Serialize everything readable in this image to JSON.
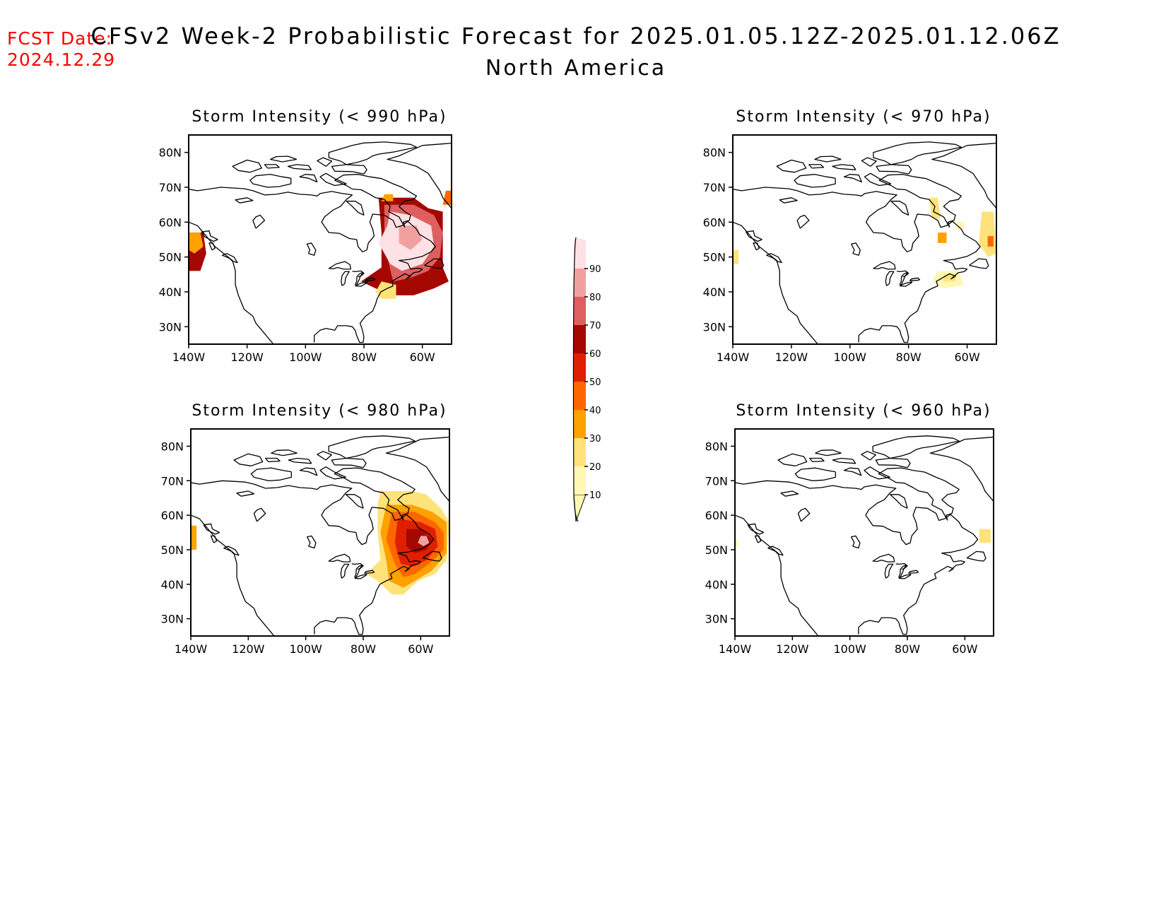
{
  "header": {
    "fcst_label": "FCST Date:",
    "fcst_date": "2024.12.29",
    "title": "CFSv2 Week-2 Probabilistic Forecast for 2025.01.05.12Z-2025.01.12.06Z",
    "subtitle": "North America"
  },
  "axes": {
    "lat_labels": [
      "80N",
      "70N",
      "60N",
      "50N",
      "40N",
      "30N"
    ],
    "lon_labels": [
      "140W",
      "120W",
      "100W",
      "80W",
      "60W"
    ]
  },
  "colorbar": {
    "levels": [
      "10",
      "20",
      "30",
      "40",
      "50",
      "60",
      "70",
      "80",
      "90"
    ],
    "colors": [
      "#fff7b3",
      "#ffe37a",
      "#ffa100",
      "#ff6600",
      "#e01f00",
      "#a50800",
      "#dd5f5f",
      "#f1a0a0",
      "#fde1e4"
    ]
  },
  "map_data": {
    "lat_range": [
      25,
      85
    ],
    "lon_range": [
      -140,
      -50
    ],
    "panels": [
      {
        "id": "p990",
        "title": "Storm Intensity (< 990 hPa)",
        "regions": [
          {
            "level": 6,
            "lonlat": [
              [
                -140,
                57
              ],
              [
                -135,
                57
              ],
              [
                -134,
                51
              ],
              [
                -136,
                46
              ],
              [
                -140,
                46
              ]
            ]
          },
          {
            "level": 3,
            "lonlat": [
              [
                -140,
                57
              ],
              [
                -136,
                57
              ],
              [
                -135,
                53
              ],
              [
                -138,
                51
              ],
              [
                -140,
                52
              ]
            ]
          },
          {
            "level": 6,
            "lonlat": [
              [
                -75,
                67
              ],
              [
                -63,
                67
              ],
              [
                -58,
                64
              ],
              [
                -53,
                63
              ],
              [
                -53,
                47
              ],
              [
                -51,
                43
              ],
              [
                -56,
                41
              ],
              [
                -63,
                39
              ],
              [
                -70,
                39
              ],
              [
                -76,
                41
              ],
              [
                -81,
                43
              ],
              [
                -74,
                47
              ],
              [
                -74,
                57
              ]
            ]
          },
          {
            "level": 7,
            "lonlat": [
              [
                -73,
                65
              ],
              [
                -63,
                65
              ],
              [
                -56,
                62
              ],
              [
                -53,
                57
              ],
              [
                -54,
                50
              ],
              [
                -58,
                46
              ],
              [
                -64,
                44
              ],
              [
                -70,
                43
              ],
              [
                -72,
                50
              ],
              [
                -73,
                58
              ]
            ]
          },
          {
            "level": 9,
            "lonlat": [
              [
                -71,
                63
              ],
              [
                -64,
                62
              ],
              [
                -57,
                59
              ],
              [
                -56,
                53
              ],
              [
                -60,
                48
              ],
              [
                -67,
                46
              ],
              [
                -71,
                48
              ],
              [
                -75,
                54
              ],
              [
                -72,
                59
              ]
            ]
          },
          {
            "level": 8,
            "lonlat": [
              [
                -68,
                59
              ],
              [
                -62,
                59
              ],
              [
                -60,
                55
              ],
              [
                -64,
                52
              ],
              [
                -68,
                54
              ]
            ]
          },
          {
            "level": 2,
            "lonlat": [
              [
                -74,
                43
              ],
              [
                -69,
                42
              ],
              [
                -69,
                38
              ],
              [
                -74,
                38
              ],
              [
                -76,
                40
              ]
            ]
          },
          {
            "level": 3,
            "lonlat": [
              [
                -73,
                68
              ],
              [
                -70,
                68
              ],
              [
                -70,
                66
              ],
              [
                -74,
                66
              ]
            ]
          },
          {
            "level": 4,
            "lonlat": [
              [
                -52,
                69
              ],
              [
                -50,
                69
              ],
              [
                -50,
                65
              ],
              [
                -53,
                65
              ]
            ]
          }
        ]
      },
      {
        "id": "p970",
        "title": "Storm Intensity (< 970 hPa)",
        "regions": [
          {
            "level": 2,
            "lonlat": [
              [
                -140,
                52
              ],
              [
                -138,
                52
              ],
              [
                -138,
                48
              ],
              [
                -140,
                48
              ]
            ]
          },
          {
            "level": 2,
            "lonlat": [
              [
                -73,
                67
              ],
              [
                -70,
                67
              ],
              [
                -69,
                61
              ],
              [
                -72,
                61
              ]
            ]
          },
          {
            "level": 3,
            "lonlat": [
              [
                -70,
                57
              ],
              [
                -67,
                57
              ],
              [
                -67,
                54
              ],
              [
                -70,
                54
              ]
            ]
          },
          {
            "level": 2,
            "lonlat": [
              [
                -55,
                63
              ],
              [
                -51,
                63
              ],
              [
                -50,
                51
              ],
              [
                -53,
                50
              ],
              [
                -56,
                54
              ]
            ]
          },
          {
            "level": 4,
            "lonlat": [
              [
                -53,
                56
              ],
              [
                -51,
                56
              ],
              [
                -51,
                53
              ],
              [
                -53,
                53
              ]
            ]
          },
          {
            "level": 1,
            "lonlat": [
              [
                -70,
                46
              ],
              [
                -63,
                46
              ],
              [
                -61,
                42
              ],
              [
                -68,
                41
              ],
              [
                -72,
                43
              ]
            ]
          },
          {
            "level": 2,
            "lonlat": [
              [
                -68,
                45
              ],
              [
                -64,
                45
              ],
              [
                -64,
                43
              ],
              [
                -68,
                43
              ]
            ]
          },
          {
            "level": 1,
            "lonlat": [
              [
                -64,
                60
              ],
              [
                -61,
                60
              ],
              [
                -61,
                58
              ],
              [
                -64,
                58
              ]
            ]
          }
        ]
      },
      {
        "id": "p980",
        "title": "Storm Intensity (< 980 hPa)",
        "regions": [
          {
            "level": 3,
            "lonlat": [
              [
                -140,
                57
              ],
              [
                -138,
                57
              ],
              [
                -138,
                50
              ],
              [
                -140,
                50
              ]
            ]
          },
          {
            "level": 2,
            "lonlat": [
              [
                -74,
                67
              ],
              [
                -63,
                67
              ],
              [
                -58,
                66
              ],
              [
                -53,
                62
              ],
              [
                -50,
                58
              ],
              [
                -51,
                47
              ],
              [
                -55,
                43
              ],
              [
                -61,
                41
              ],
              [
                -66,
                37
              ],
              [
                -70,
                37
              ],
              [
                -75,
                41
              ],
              [
                -79,
                43
              ],
              [
                -74,
                47
              ],
              [
                -75,
                56
              ],
              [
                -75,
                63
              ]
            ]
          },
          {
            "level": 3,
            "lonlat": [
              [
                -72,
                63
              ],
              [
                -63,
                63
              ],
              [
                -56,
                61
              ],
              [
                -51,
                58
              ],
              [
                -51,
                49
              ],
              [
                -56,
                44
              ],
              [
                -62,
                41
              ],
              [
                -66,
                39
              ],
              [
                -71,
                41
              ],
              [
                -72,
                47
              ],
              [
                -74,
                55
              ]
            ]
          },
          {
            "level": 4,
            "lonlat": [
              [
                -70,
                61
              ],
              [
                -62,
                61
              ],
              [
                -55,
                58
              ],
              [
                -52,
                55
              ],
              [
                -52,
                50
              ],
              [
                -57,
                46
              ],
              [
                -62,
                43
              ],
              [
                -66,
                42
              ],
              [
                -69,
                46
              ],
              [
                -72,
                53
              ]
            ]
          },
          {
            "level": 5,
            "lonlat": [
              [
                -68,
                59
              ],
              [
                -60,
                58
              ],
              [
                -55,
                56
              ],
              [
                -54,
                51
              ],
              [
                -58,
                47
              ],
              [
                -63,
                45
              ],
              [
                -67,
                46
              ],
              [
                -69,
                52
              ]
            ]
          },
          {
            "level": 6,
            "lonlat": [
              [
                -65,
                56
              ],
              [
                -60,
                56
              ],
              [
                -56,
                53
              ],
              [
                -58,
                50
              ],
              [
                -62,
                49
              ],
              [
                -65,
                51
              ]
            ]
          },
          {
            "level": 8,
            "lonlat": [
              [
                -60,
                54
              ],
              [
                -58,
                54
              ],
              [
                -57,
                52
              ],
              [
                -59,
                51
              ],
              [
                -61,
                52
              ]
            ]
          }
        ]
      },
      {
        "id": "p960",
        "title": "Storm Intensity (< 960 hPa)",
        "regions": [
          {
            "level": 1,
            "lonlat": [
              [
                -140,
                53
              ],
              [
                -139,
                53
              ],
              [
                -139,
                51
              ],
              [
                -140,
                51
              ]
            ]
          },
          {
            "level": 2,
            "lonlat": [
              [
                -55,
                56
              ],
              [
                -51,
                56
              ],
              [
                -51,
                52
              ],
              [
                -55,
                52
              ]
            ]
          }
        ]
      }
    ]
  }
}
